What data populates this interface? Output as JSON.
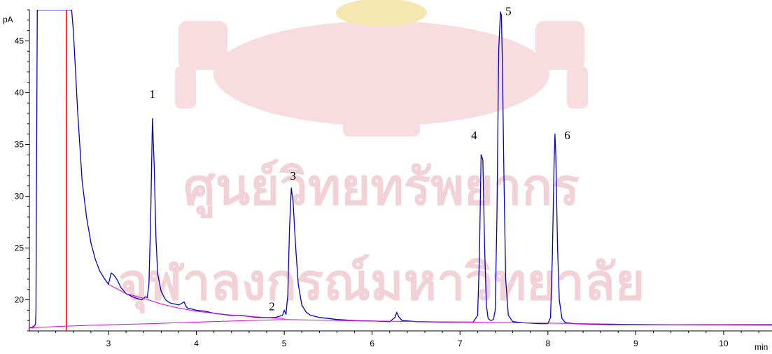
{
  "chart_data": {
    "type": "line",
    "y_unit_label": "pA",
    "x_unit_label": "min",
    "xlim": [
      2.1,
      10.55
    ],
    "ylim": [
      17.0,
      48.0
    ],
    "x_ticks": [
      3,
      4,
      5,
      6,
      7,
      8,
      9,
      10
    ],
    "x_minor_step": 0.2,
    "y_ticks": [
      20,
      25,
      30,
      35,
      40,
      45
    ],
    "y_minor_step": 1,
    "grid": false,
    "colors": {
      "signal": "#0000cc",
      "baseline": "#e000e0",
      "marker": "#ff0000",
      "axis": "#000000",
      "watermark": "#f2d2d6"
    },
    "marker_x": 2.52,
    "watermark": {
      "line1": "ศูนย์วิทยทรัพยากร",
      "line2": "จุฬาลงกรณ์มหาวิทยาลัย",
      "emblem": "university-seal"
    },
    "series": [
      {
        "color": "#0000cc",
        "x": [
          2.1,
          2.13,
          2.14,
          2.15,
          2.16,
          2.17,
          2.175,
          2.18,
          2.19,
          2.2,
          2.25,
          2.3,
          2.35,
          2.4,
          2.45,
          2.5,
          2.53,
          2.555,
          2.58,
          2.6,
          2.65,
          2.7,
          2.75,
          2.8,
          2.85,
          2.9,
          2.95,
          3.0,
          3.03,
          3.06,
          3.1,
          3.14,
          3.2,
          3.3,
          3.38,
          3.42,
          3.44,
          3.46,
          3.48,
          3.5,
          3.52,
          3.54,
          3.56,
          3.6,
          3.65,
          3.7,
          3.8,
          3.86,
          3.88,
          3.9,
          4.0,
          4.1,
          4.2,
          4.3,
          4.4,
          4.5,
          4.6,
          4.7,
          4.8,
          4.9,
          4.98,
          5.0,
          5.02,
          5.04,
          5.06,
          5.08,
          5.1,
          5.13,
          5.16,
          5.2,
          5.25,
          5.3,
          5.4,
          5.5,
          5.6,
          5.8,
          6.0,
          6.2,
          6.26,
          6.28,
          6.3,
          6.34,
          6.5,
          6.8,
          7.0,
          7.15,
          7.2,
          7.22,
          7.24,
          7.26,
          7.28,
          7.3,
          7.32,
          7.35,
          7.38,
          7.4,
          7.42,
          7.44,
          7.46,
          7.47,
          7.48,
          7.5,
          7.52,
          7.55,
          7.6,
          7.7,
          7.8,
          7.9,
          8.0,
          8.03,
          8.05,
          8.07,
          8.08,
          8.09,
          8.11,
          8.13,
          8.16,
          8.2,
          8.3,
          8.5,
          8.7,
          8.9,
          9.2,
          9.5,
          10.0,
          10.55
        ],
        "values": [
          17.3,
          17.35,
          17.4,
          17.45,
          17.5,
          17.7,
          19.0,
          30.0,
          48.5,
          48.5,
          48.5,
          48.5,
          48.5,
          48.5,
          48.5,
          48.5,
          48.5,
          48.5,
          48.5,
          46.0,
          38.0,
          31.5,
          28.0,
          25.5,
          23.9,
          22.8,
          22.1,
          21.5,
          22.6,
          22.4,
          21.9,
          21.2,
          20.6,
          20.2,
          20.0,
          20.3,
          20.2,
          21.5,
          28.0,
          37.5,
          33.0,
          26.0,
          22.5,
          20.8,
          20.0,
          19.7,
          19.5,
          19.8,
          19.4,
          19.2,
          19.0,
          18.9,
          18.7,
          18.6,
          18.5,
          18.5,
          18.4,
          18.3,
          18.3,
          18.3,
          18.5,
          19.0,
          18.6,
          20.5,
          27.0,
          30.8,
          29.5,
          25.0,
          21.5,
          19.5,
          18.8,
          18.5,
          18.3,
          18.2,
          18.1,
          18.0,
          17.95,
          17.9,
          18.3,
          18.8,
          18.4,
          18.0,
          17.9,
          17.85,
          17.85,
          17.85,
          18.5,
          24.0,
          34.0,
          33.5,
          25.0,
          19.5,
          18.2,
          18.0,
          18.1,
          19.0,
          28.0,
          44.0,
          47.8,
          47.5,
          44.0,
          32.0,
          22.0,
          18.5,
          17.9,
          17.8,
          17.75,
          17.7,
          17.7,
          18.3,
          24.0,
          33.0,
          36.0,
          34.0,
          25.0,
          20.0,
          18.2,
          17.8,
          17.7,
          17.65,
          17.6,
          17.6,
          17.6,
          17.6,
          17.6,
          17.6
        ]
      },
      {
        "color": "#e000e0",
        "x": [
          2.1,
          2.5,
          3.0,
          3.5,
          4.0,
          5.0,
          6.0,
          7.0,
          8.0,
          8.8,
          10.55
        ],
        "values": [
          17.3,
          17.45,
          17.6,
          17.7,
          17.85,
          18.1,
          17.95,
          17.85,
          17.75,
          17.65,
          17.55
        ]
      },
      {
        "color": "#e000e0",
        "x": [
          3.0,
          3.2,
          3.42,
          3.6,
          3.8,
          4.0,
          4.3,
          4.6,
          4.9,
          5.0
        ],
        "values": [
          21.5,
          20.6,
          20.1,
          19.6,
          19.2,
          18.9,
          18.6,
          18.4,
          18.25,
          18.2
        ]
      }
    ],
    "peak_labels": [
      {
        "text": "1",
        "x": 3.5,
        "y": 39.5
      },
      {
        "text": "2",
        "x": 4.86,
        "y": 19.0
      },
      {
        "text": "3",
        "x": 5.1,
        "y": 31.6
      },
      {
        "text": "4",
        "x": 7.16,
        "y": 35.5
      },
      {
        "text": "5",
        "x": 7.55,
        "y": 47.5
      },
      {
        "text": "6",
        "x": 8.22,
        "y": 35.5
      }
    ]
  }
}
